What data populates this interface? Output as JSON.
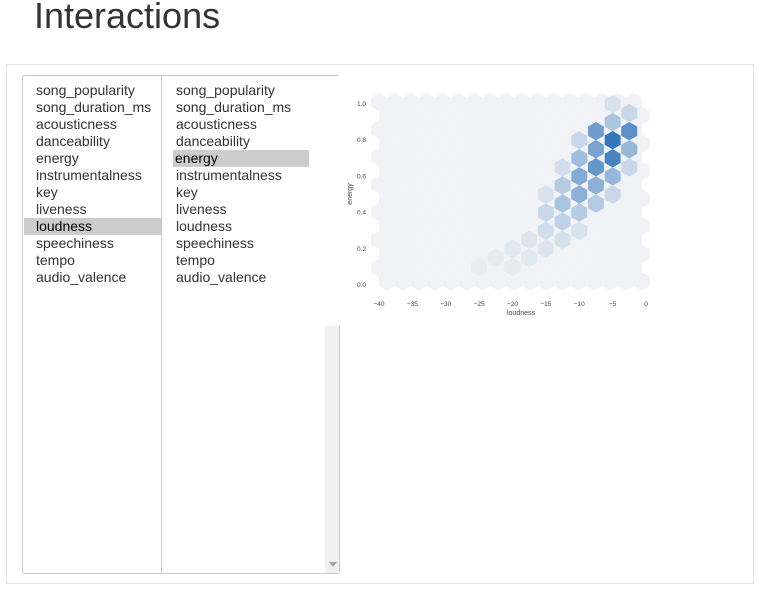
{
  "page": {
    "title": "Interactions"
  },
  "x_select": {
    "options": [
      "song_popularity",
      "song_duration_ms",
      "acousticness",
      "danceability",
      "energy",
      "instrumentalness",
      "key",
      "liveness",
      "loudness",
      "speechiness",
      "tempo",
      "audio_valence"
    ],
    "selected": "loudness"
  },
  "y_select": {
    "options": [
      "song_popularity",
      "song_duration_ms",
      "acousticness",
      "danceability",
      "energy",
      "instrumentalness",
      "key",
      "liveness",
      "loudness",
      "speechiness",
      "tempo",
      "audio_valence"
    ],
    "selected": "energy"
  },
  "chart_data": {
    "type": "hexbin",
    "xlabel": "loudness",
    "ylabel": "energy",
    "xticks": [
      "−40",
      "−35",
      "−30",
      "−25",
      "−20",
      "−15",
      "−10",
      "−5",
      "0"
    ],
    "yticks": [
      "0.0",
      "0.2",
      "0.4",
      "0.6",
      "0.8",
      "1.0"
    ],
    "xlim": [
      -40,
      0
    ],
    "ylim": [
      0,
      1
    ],
    "colors": {
      "low": "#f0f2f5",
      "high": "#2a6fb7"
    },
    "bins": [
      {
        "x": -5,
        "y": 0.9,
        "v": 0.35
      },
      {
        "x": -5,
        "y": 0.8,
        "v": 0.95
      },
      {
        "x": -7.5,
        "y": 0.85,
        "v": 0.65
      },
      {
        "x": -2.5,
        "y": 0.85,
        "v": 0.75
      },
      {
        "x": -5,
        "y": 0.7,
        "v": 0.85
      },
      {
        "x": -7.5,
        "y": 0.75,
        "v": 0.6
      },
      {
        "x": -2.5,
        "y": 0.75,
        "v": 0.45
      },
      {
        "x": -7.5,
        "y": 0.65,
        "v": 0.7
      },
      {
        "x": -5,
        "y": 0.6,
        "v": 0.45
      },
      {
        "x": -10,
        "y": 0.7,
        "v": 0.4
      },
      {
        "x": -10,
        "y": 0.6,
        "v": 0.55
      },
      {
        "x": -7.5,
        "y": 0.55,
        "v": 0.5
      },
      {
        "x": -10,
        "y": 0.5,
        "v": 0.5
      },
      {
        "x": -12.5,
        "y": 0.55,
        "v": 0.3
      },
      {
        "x": -12.5,
        "y": 0.45,
        "v": 0.35
      },
      {
        "x": -7.5,
        "y": 0.45,
        "v": 0.3
      },
      {
        "x": -10,
        "y": 0.4,
        "v": 0.3
      },
      {
        "x": -15,
        "y": 0.4,
        "v": 0.2
      },
      {
        "x": -12.5,
        "y": 0.35,
        "v": 0.25
      },
      {
        "x": -15,
        "y": 0.3,
        "v": 0.16
      },
      {
        "x": -17.5,
        "y": 0.25,
        "v": 0.1
      },
      {
        "x": -12.5,
        "y": 0.25,
        "v": 0.14
      },
      {
        "x": -20,
        "y": 0.2,
        "v": 0.08
      },
      {
        "x": -15,
        "y": 0.2,
        "v": 0.1
      },
      {
        "x": -17.5,
        "y": 0.15,
        "v": 0.08
      },
      {
        "x": -22.5,
        "y": 0.15,
        "v": 0.05
      },
      {
        "x": -20,
        "y": 0.1,
        "v": 0.06
      },
      {
        "x": -25,
        "y": 0.1,
        "v": 0.04
      },
      {
        "x": -2.5,
        "y": 0.95,
        "v": 0.2
      },
      {
        "x": -5,
        "y": 1.0,
        "v": 0.12
      },
      {
        "x": -10,
        "y": 0.8,
        "v": 0.2
      },
      {
        "x": -2.5,
        "y": 0.65,
        "v": 0.2
      },
      {
        "x": -5,
        "y": 0.5,
        "v": 0.2
      },
      {
        "x": -12.5,
        "y": 0.65,
        "v": 0.15
      },
      {
        "x": -10,
        "y": 0.3,
        "v": 0.12
      },
      {
        "x": -15,
        "y": 0.5,
        "v": 0.12
      }
    ]
  }
}
